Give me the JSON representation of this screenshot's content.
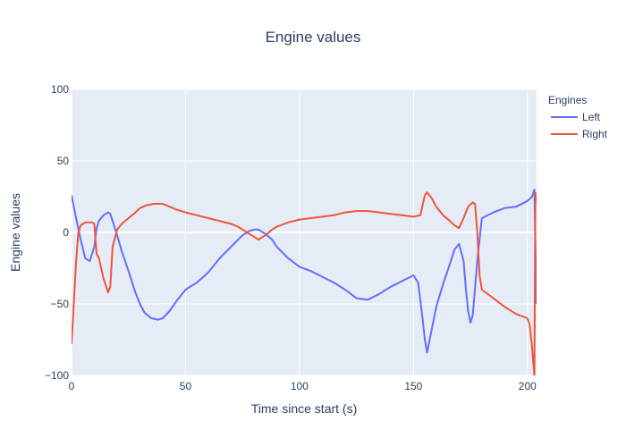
{
  "chart_data": {
    "type": "line",
    "title": "Engine values",
    "xlabel": "Time since start (s)",
    "ylabel": "Engine values",
    "xlim": [
      0,
      204
    ],
    "ylim": [
      -100,
      100
    ],
    "x_ticks": [
      0,
      50,
      100,
      150,
      200
    ],
    "y_ticks": [
      -100,
      -50,
      0,
      50,
      100
    ],
    "x_tick_labels": [
      "0",
      "50",
      "100",
      "150",
      "200"
    ],
    "y_tick_labels": [
      "−100",
      "−50",
      "0",
      "50",
      "100"
    ],
    "grid": true,
    "legend": {
      "title": "Engines",
      "placement": "top-right"
    },
    "series": [
      {
        "name": "Left",
        "color": "#636efa",
        "x": [
          0,
          2,
          4,
          6,
          8,
          10,
          11,
          12,
          14,
          16,
          17,
          18,
          20,
          22,
          25,
          28,
          30,
          32,
          35,
          38,
          40,
          43,
          46,
          50,
          55,
          60,
          65,
          70,
          75,
          78,
          80,
          82,
          85,
          88,
          90,
          95,
          100,
          105,
          110,
          115,
          120,
          125,
          130,
          135,
          140,
          145,
          150,
          152,
          154,
          155,
          156,
          158,
          160,
          163,
          166,
          168,
          170,
          172,
          173,
          174,
          175,
          176,
          178,
          180,
          185,
          190,
          195,
          200,
          202,
          203,
          204
        ],
        "y": [
          26,
          10,
          -5,
          -18,
          -20,
          -10,
          3,
          8,
          12,
          14,
          13,
          8,
          -2,
          -13,
          -27,
          -42,
          -50,
          -56,
          -60,
          -61,
          -60,
          -55,
          -48,
          -40,
          -35,
          -28,
          -18,
          -10,
          -2,
          1,
          2,
          2,
          -1,
          -5,
          -10,
          -18,
          -24,
          -27,
          -31,
          -35,
          -40,
          -46,
          -47,
          -43,
          -38,
          -34,
          -30,
          -35,
          -60,
          -75,
          -84,
          -68,
          -52,
          -36,
          -22,
          -12,
          -8,
          -20,
          -40,
          -55,
          -63,
          -58,
          -20,
          10,
          14,
          17,
          18,
          22,
          25,
          30,
          -50
        ]
      },
      {
        "name": "Right",
        "color": "#ef553b",
        "x": [
          0,
          1,
          2,
          3,
          4,
          5,
          6,
          7,
          8,
          9,
          10,
          11,
          12,
          14,
          16,
          17,
          18,
          20,
          22,
          25,
          28,
          30,
          33,
          36,
          40,
          43,
          46,
          50,
          55,
          60,
          65,
          70,
          73,
          76,
          78,
          80,
          82,
          85,
          88,
          90,
          95,
          100,
          105,
          110,
          115,
          120,
          125,
          130,
          135,
          140,
          145,
          150,
          153,
          155,
          156,
          158,
          160,
          163,
          166,
          168,
          170,
          172,
          174,
          176,
          177,
          178,
          179,
          180,
          185,
          190,
          195,
          200,
          201,
          202,
          203,
          203.5,
          204
        ],
        "y": [
          -78,
          -50,
          -20,
          0,
          5,
          6,
          7,
          7,
          7,
          7,
          6,
          -15,
          -18,
          -32,
          -42,
          -38,
          -10,
          2,
          6,
          10,
          14,
          17,
          19,
          20,
          20,
          18,
          16,
          14,
          12,
          10,
          8,
          6,
          4,
          1,
          -1,
          -3,
          -5,
          -2,
          2,
          4,
          7,
          9,
          10,
          11,
          12,
          14,
          15,
          15,
          14,
          13,
          12,
          11,
          12,
          26,
          28,
          24,
          18,
          12,
          8,
          5,
          3,
          10,
          18,
          21,
          20,
          0,
          -30,
          -40,
          -46,
          -52,
          -57,
          -60,
          -65,
          -80,
          -100,
          28,
          20
        ]
      }
    ]
  }
}
